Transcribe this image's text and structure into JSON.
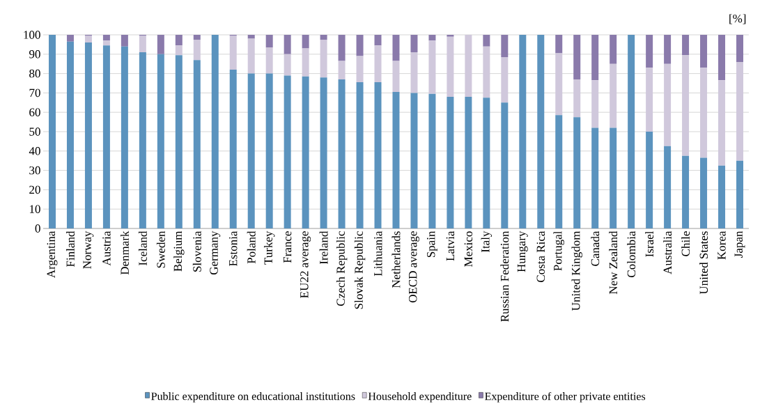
{
  "chart_data": {
    "type": "bar",
    "stacked": true,
    "ylabel": "[%]",
    "categories": [
      "Argentina",
      "Finland",
      "Norway",
      "Austria",
      "Denmark",
      "Iceland",
      "Sweden",
      "Belgium",
      "Slovenia",
      "Germany",
      "Estonia",
      "Poland",
      "Turkey",
      "France",
      "EU22 average",
      "Ireland",
      "Czech Republic",
      "Slovak Republic",
      "Lithuania",
      "Netherlands",
      "OECD average",
      "Spain",
      "Latvia",
      "Mexico",
      "Italy",
      "Russian Federation",
      "Hungary",
      "Costa Rica",
      "Portugal",
      "United Kingdom",
      "Canada",
      "New Zealand",
      "Colombia",
      "Israel",
      "Australia",
      "Chile",
      "United States",
      "Korea",
      "Japan"
    ],
    "series": [
      {
        "name": "Public expenditure on educational institutions",
        "color": "#5b93be",
        "values": [
          100,
          96.5,
          96,
          94.5,
          94,
          91,
          90,
          89.5,
          87,
          100,
          82,
          80,
          80,
          79,
          78.5,
          78,
          77,
          75.5,
          75.5,
          70.5,
          70,
          69.5,
          68,
          68,
          67.5,
          65,
          100,
          100,
          58.5,
          57.5,
          52,
          52,
          100,
          50,
          42.5,
          37.5,
          36.5,
          32.5,
          35
        ]
      },
      {
        "name": "Household expenditure",
        "color": "#d0c8dc",
        "values": [
          0,
          0,
          3.5,
          2.5,
          0,
          8.5,
          0,
          5,
          10.5,
          0,
          17.5,
          18,
          13.5,
          11,
          14.5,
          19.5,
          9.5,
          13.5,
          19,
          16,
          21,
          27.5,
          31,
          32,
          26.5,
          23.5,
          0,
          0,
          32,
          19.5,
          24.5,
          33,
          0,
          33,
          42.5,
          52,
          46.5,
          44,
          51
        ]
      },
      {
        "name": "Expenditure of other private entities",
        "color": "#8a7aab",
        "values": [
          0,
          3.5,
          0.5,
          3,
          6,
          0.5,
          10,
          5.5,
          2.5,
          0,
          0.5,
          2,
          6.5,
          10,
          7,
          2.5,
          13.5,
          11,
          5.5,
          13.5,
          9,
          3,
          1,
          0,
          6,
          11.5,
          0,
          0,
          9.5,
          23,
          23.5,
          15,
          0,
          17,
          15,
          10.5,
          17,
          23.5,
          14
        ]
      }
    ],
    "ylim": [
      0,
      100
    ],
    "yticks": [
      0,
      10,
      20,
      30,
      40,
      50,
      60,
      70,
      80,
      90,
      100
    ],
    "grid": "y",
    "legend": "bottom"
  }
}
